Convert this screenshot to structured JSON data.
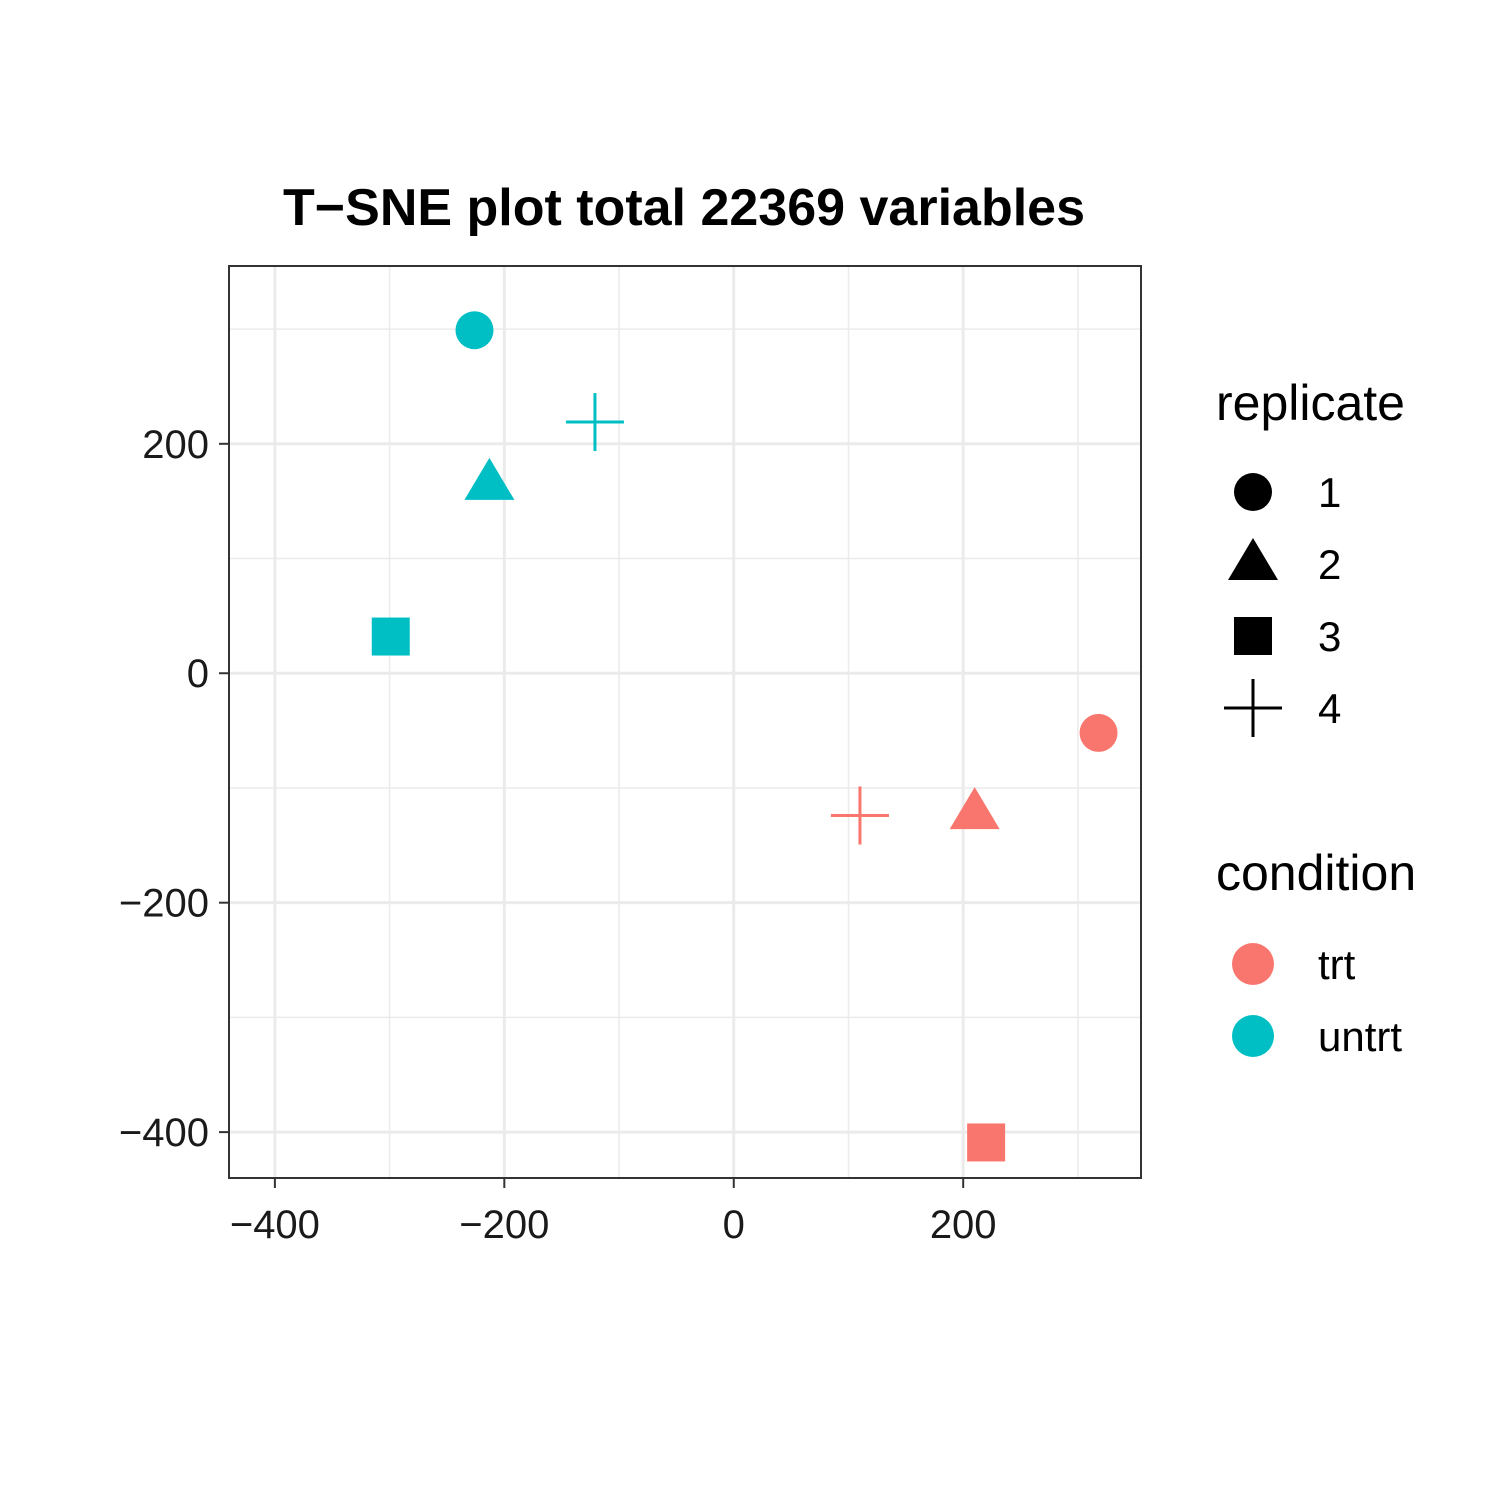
{
  "chart_data": {
    "type": "scatter",
    "title": "T−SNE plot total 22369 variables",
    "xlabel": "",
    "ylabel": "",
    "xlim": [
      -440,
      355
    ],
    "ylim": [
      -440,
      355
    ],
    "x_ticks": [
      -400,
      -200,
      0,
      200
    ],
    "x_tick_labels": [
      "−400",
      "−200",
      "0",
      "200"
    ],
    "y_ticks": [
      -400,
      -200,
      0,
      200
    ],
    "y_tick_labels": [
      "−400",
      "−200",
      "0",
      "200"
    ],
    "minor_breaks": [
      -300,
      -100,
      100,
      300
    ],
    "grid": true,
    "points": [
      {
        "x": -226,
        "y": 299,
        "replicate": "1",
        "condition": "untrt"
      },
      {
        "x": -213,
        "y": 165,
        "replicate": "2",
        "condition": "untrt"
      },
      {
        "x": -299,
        "y": 32,
        "replicate": "3",
        "condition": "untrt"
      },
      {
        "x": -121,
        "y": 219,
        "replicate": "4",
        "condition": "untrt"
      },
      {
        "x": 318,
        "y": -52,
        "replicate": "1",
        "condition": "trt"
      },
      {
        "x": 210,
        "y": -122,
        "replicate": "2",
        "condition": "trt"
      },
      {
        "x": 220,
        "y": -409,
        "replicate": "3",
        "condition": "trt"
      },
      {
        "x": 110,
        "y": -124,
        "replicate": "4",
        "condition": "trt"
      }
    ],
    "legends": [
      {
        "title": "replicate",
        "items": [
          {
            "label": "1",
            "shape": "circle"
          },
          {
            "label": "2",
            "shape": "triangle"
          },
          {
            "label": "3",
            "shape": "square"
          },
          {
            "label": "4",
            "shape": "plus"
          }
        ]
      },
      {
        "title": "condition",
        "items": [
          {
            "label": "trt",
            "color": "#F8766D"
          },
          {
            "label": "untrt",
            "color": "#00BFC4"
          }
        ]
      }
    ],
    "legend_position": "right",
    "colors": {
      "trt": "#F8766D",
      "untrt": "#00BFC4",
      "legend_shape": "#000000"
    },
    "shape_map": {
      "1": "circle",
      "2": "triangle",
      "3": "square",
      "4": "plus"
    }
  }
}
